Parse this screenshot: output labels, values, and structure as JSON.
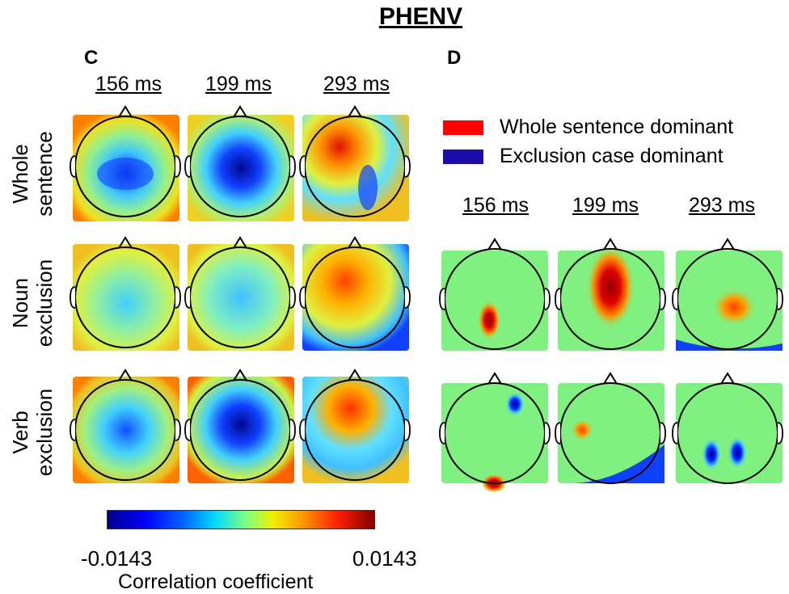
{
  "title": "PHENV",
  "panels": {
    "left_letter": "C",
    "right_letter": "D"
  },
  "time_labels": [
    "156 ms",
    "199 ms",
    "293 ms"
  ],
  "row_labels": [
    {
      "line1": "Whole",
      "line2": "sentence"
    },
    {
      "line1": "Noun",
      "line2": "exclusion"
    },
    {
      "line1": "Verb",
      "line2": "exclusion"
    }
  ],
  "legend": {
    "items": [
      {
        "label": "Whole sentence dominant",
        "color": "#ff0000"
      },
      {
        "label": "Exclusion case dominant",
        "color": "#1a0dab"
      }
    ]
  },
  "colorbar": {
    "min_label": "-0.0143",
    "max_label": "0.0143",
    "label": "Correlation coefficient"
  },
  "colors": {
    "neutral_green": "#80f080",
    "map_red": "#d00000",
    "map_blue": "#0010c0"
  }
}
